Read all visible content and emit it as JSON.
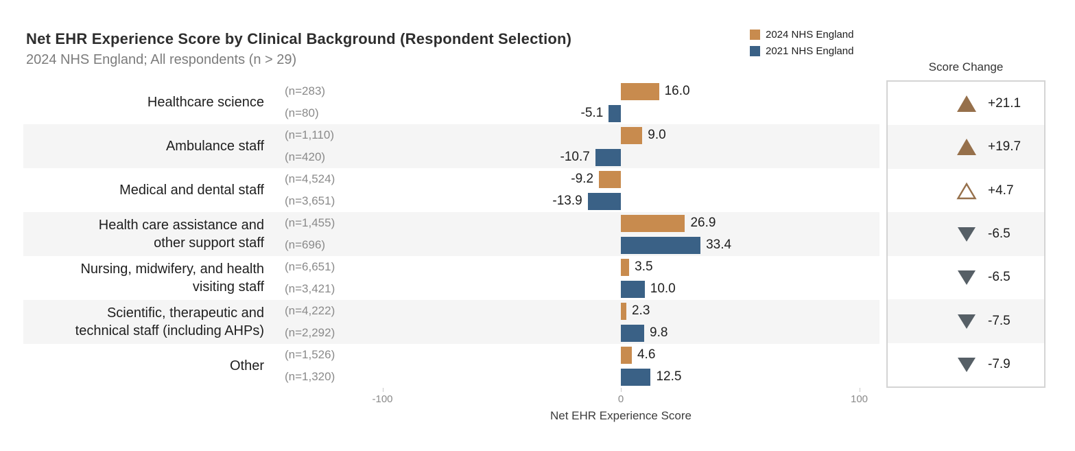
{
  "title": "Net EHR Experience Score by Clinical Background (Respondent Selection)",
  "subtitle": "2024 NHS England; All respondents (n > 29)",
  "legend": {
    "items": [
      {
        "label": "2024 NHS England",
        "color": "#C88B4E"
      },
      {
        "label": "2021 NHS England",
        "color": "#3A6186"
      }
    ]
  },
  "score_change_panel": {
    "header": "Score Change",
    "up_color": "#96704B",
    "down_color": "#565F66"
  },
  "axis": {
    "label": "Net EHR Experience Score",
    "ticks": [
      {
        "label": "-100",
        "value": -100
      },
      {
        "label": "0",
        "value": 0
      },
      {
        "label": "100",
        "value": 100
      }
    ]
  },
  "chart_data": {
    "type": "bar",
    "orientation": "horizontal",
    "title": "Net EHR Experience Score by Clinical Background (Respondent Selection)",
    "subtitle": "2024 NHS England; All respondents (n > 29)",
    "xlabel": "Net EHR Experience Score",
    "xlim": [
      -100,
      100
    ],
    "grid": false,
    "legend_position": "top-right",
    "row_shading": "alternate",
    "categories": [
      {
        "label_lines": [
          "Healthcare science"
        ],
        "n_2024": "(n=283)",
        "n_2021": "(n=80)"
      },
      {
        "label_lines": [
          "Ambulance staff"
        ],
        "n_2024": "(n=1,110)",
        "n_2021": "(n=420)"
      },
      {
        "label_lines": [
          "Medical and dental staff"
        ],
        "n_2024": "(n=4,524)",
        "n_2021": "(n=3,651)"
      },
      {
        "label_lines": [
          "Health care assistance and",
          "other support staff"
        ],
        "n_2024": "(n=1,455)",
        "n_2021": "(n=696)"
      },
      {
        "label_lines": [
          "Nursing, midwifery, and health",
          "visiting staff"
        ],
        "n_2024": "(n=6,651)",
        "n_2021": "(n=3,421)"
      },
      {
        "label_lines": [
          "Scientific, therapeutic and",
          "technical staff (including AHPs)"
        ],
        "n_2024": "(n=4,222)",
        "n_2021": "(n=2,292)"
      },
      {
        "label_lines": [
          "Other"
        ],
        "n_2024": "(n=1,526)",
        "n_2021": "(n=1,320)"
      }
    ],
    "series": [
      {
        "name": "2024 NHS England",
        "color": "#C88B4E",
        "values": [
          16.0,
          9.0,
          -9.2,
          26.9,
          3.5,
          2.3,
          4.6
        ],
        "labels": [
          "16.0",
          "9.0",
          "-9.2",
          "26.9",
          "3.5",
          "2.3",
          "4.6"
        ]
      },
      {
        "name": "2021 NHS England",
        "color": "#3A6186",
        "values": [
          -5.1,
          -10.7,
          -13.9,
          33.4,
          10.0,
          9.8,
          12.5
        ],
        "labels": [
          "-5.1",
          "-10.7",
          "-13.9",
          "33.4",
          "10.0",
          "9.8",
          "12.5"
        ]
      }
    ],
    "score_changes": [
      {
        "label": "+21.1",
        "value": 21.1,
        "direction": "up",
        "filled": true
      },
      {
        "label": "+19.7",
        "value": 19.7,
        "direction": "up",
        "filled": true
      },
      {
        "label": "+4.7",
        "value": 4.7,
        "direction": "up",
        "filled": false
      },
      {
        "label": "-6.5",
        "value": -6.5,
        "direction": "down",
        "filled": true
      },
      {
        "label": "-6.5",
        "value": -6.5,
        "direction": "down",
        "filled": true
      },
      {
        "label": "-7.5",
        "value": -7.5,
        "direction": "down",
        "filled": true
      },
      {
        "label": "-7.9",
        "value": -7.9,
        "direction": "down",
        "filled": true
      }
    ]
  }
}
